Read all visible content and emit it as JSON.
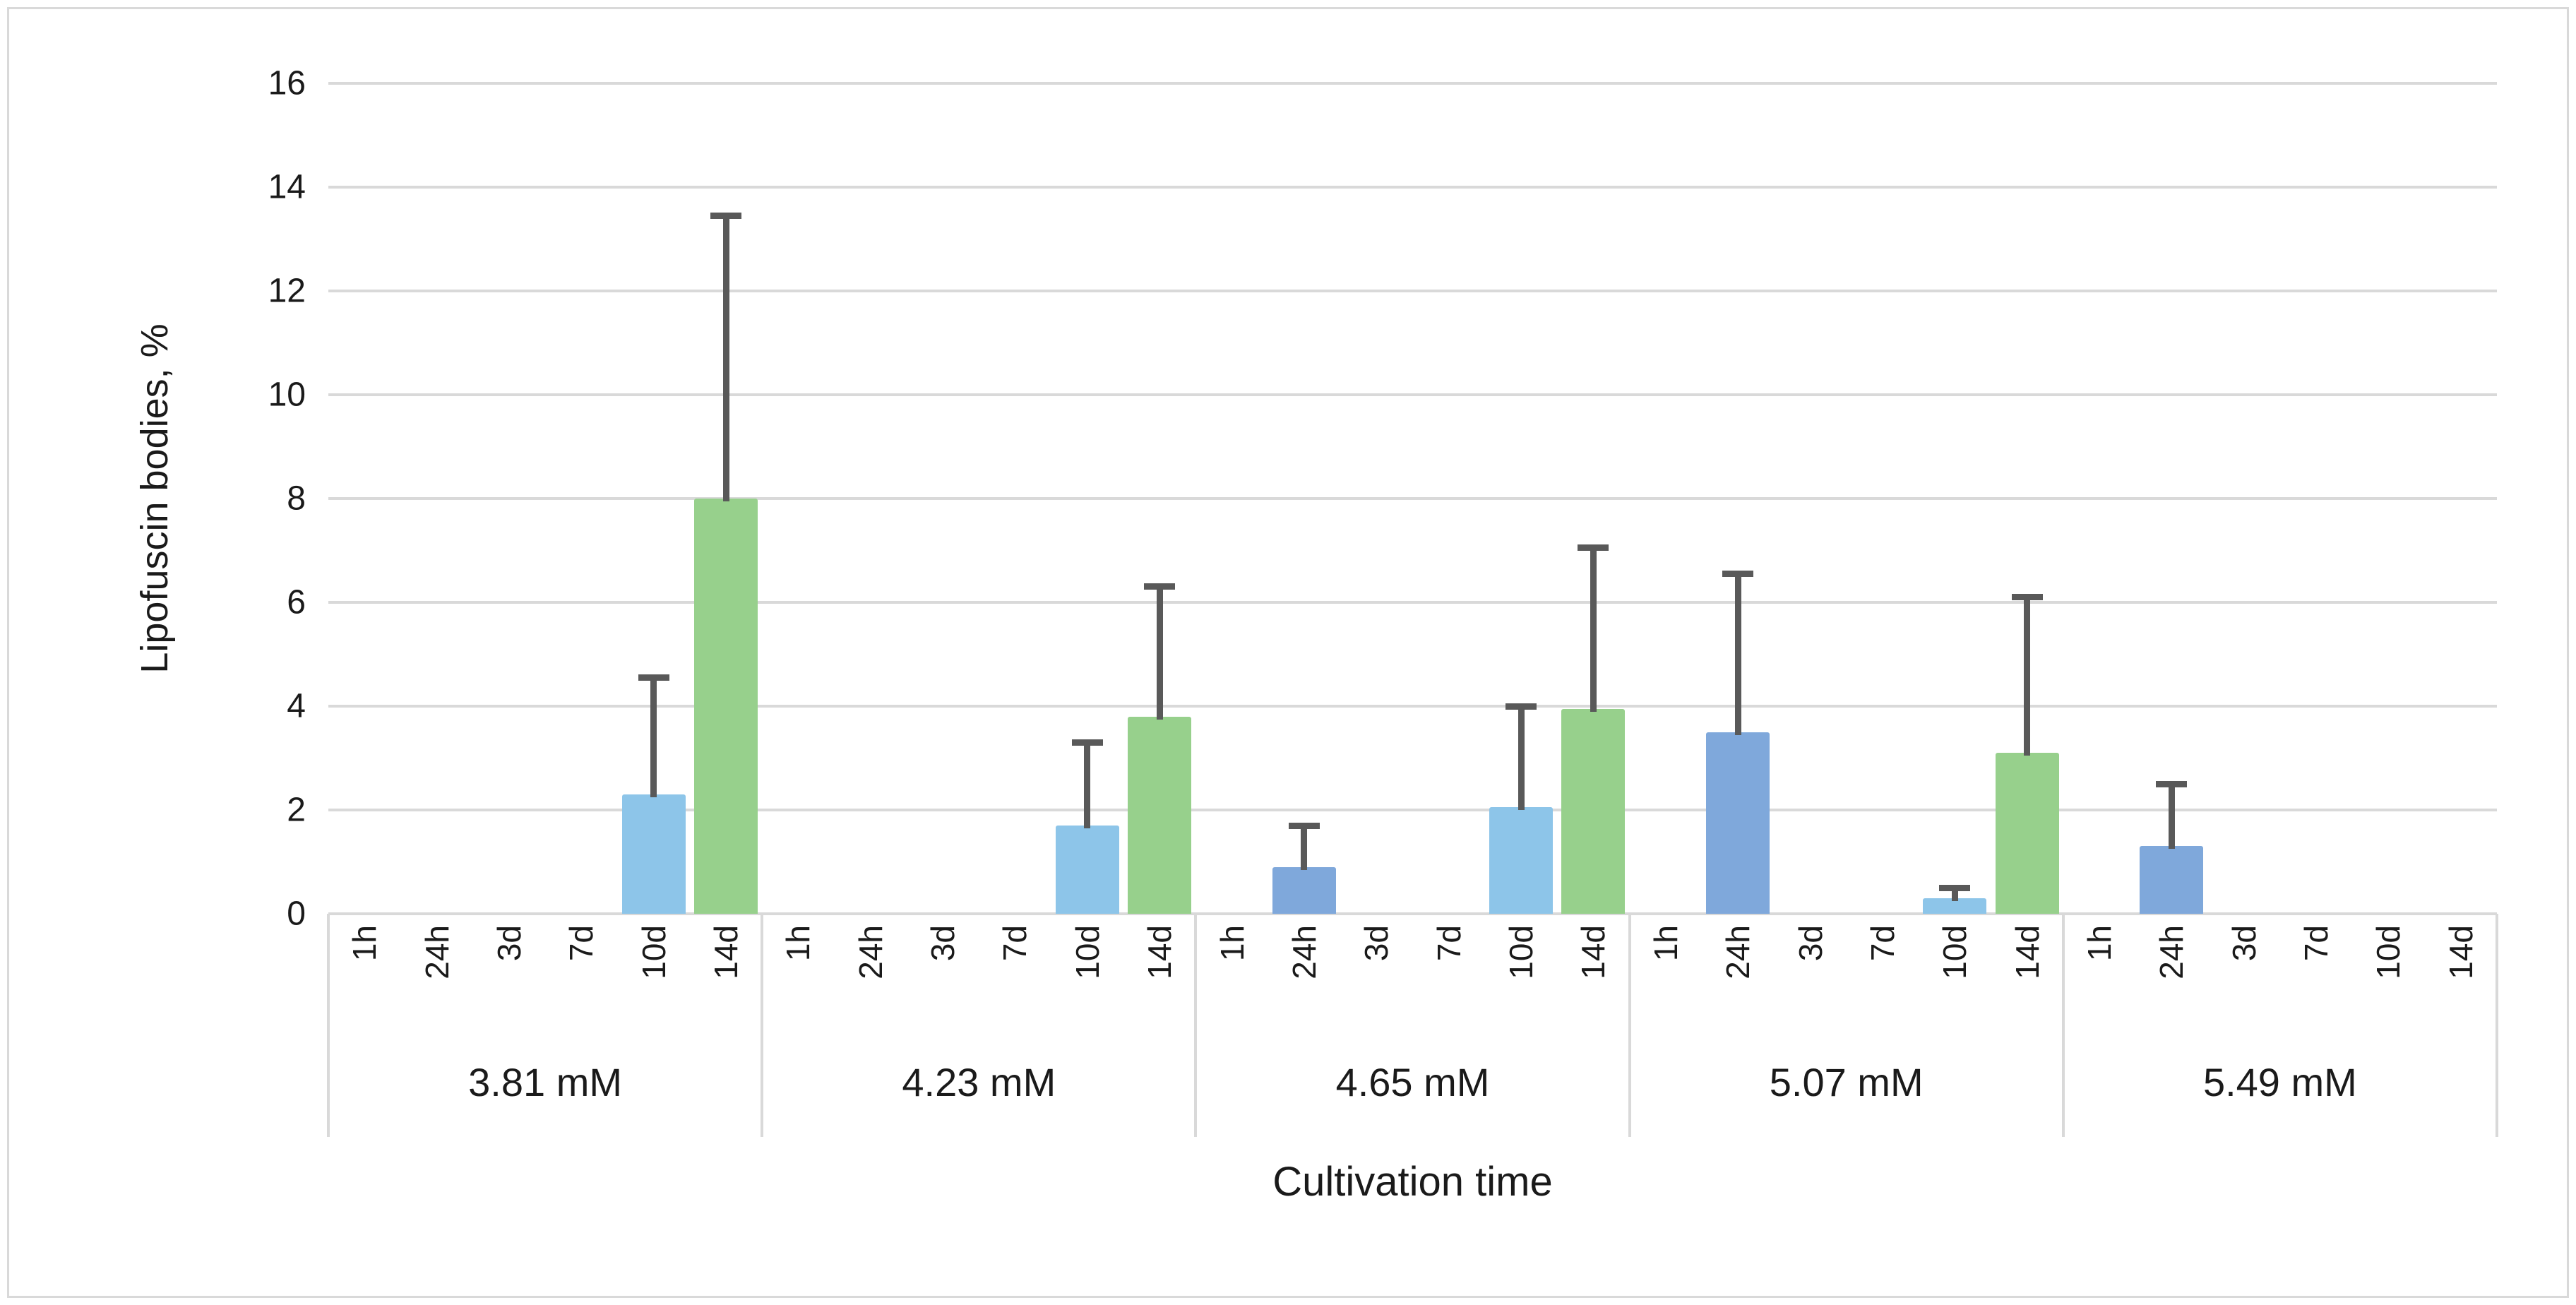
{
  "chart_data": {
    "type": "bar",
    "title": "",
    "ylabel": "Lipofuscin bodies, %",
    "xlabel": "Cultivation time",
    "ylim": [
      0,
      16
    ],
    "yticks": [
      0,
      2,
      4,
      6,
      8,
      10,
      12,
      14,
      16
    ],
    "grid": "horizontal",
    "legend_position": "none",
    "time_labels": [
      "1h",
      "24h",
      "3d",
      "7d",
      "10d",
      "14d"
    ],
    "slot_colors": [
      "#a6a6a6",
      "#7fa8db",
      "#a6a6a6",
      "#a6a6a6",
      "#8dc5e9",
      "#97d08c"
    ],
    "groups": [
      {
        "label": "3.81 mM",
        "values": [
          0,
          0,
          0,
          0,
          2.3,
          8.0
        ],
        "error_tops": [
          null,
          null,
          null,
          null,
          4.55,
          13.45
        ]
      },
      {
        "label": "4.23 mM",
        "values": [
          0,
          0,
          0,
          0,
          1.7,
          3.8
        ],
        "error_tops": [
          null,
          null,
          null,
          null,
          3.3,
          6.3
        ]
      },
      {
        "label": "4.65 mM",
        "values": [
          0,
          0.9,
          0,
          0,
          2.05,
          3.95
        ],
        "error_tops": [
          null,
          1.7,
          null,
          null,
          4.0,
          7.05
        ]
      },
      {
        "label": "5.07 mM",
        "values": [
          0,
          3.5,
          0,
          0,
          0.3,
          3.1
        ],
        "error_tops": [
          null,
          6.55,
          null,
          null,
          0.5,
          6.1
        ]
      },
      {
        "label": "5.49 mM",
        "values": [
          0,
          1.3,
          0,
          0,
          0,
          0
        ],
        "error_tops": [
          null,
          2.5,
          null,
          null,
          null,
          null
        ]
      }
    ],
    "colors": {
      "bar_24h": "#7fa8db",
      "bar_10d": "#8dc5e9",
      "bar_14d": "#97d08c",
      "gridline": "#d9d9d9",
      "error_bar": "#595959",
      "text": "#1a1a1a"
    }
  }
}
